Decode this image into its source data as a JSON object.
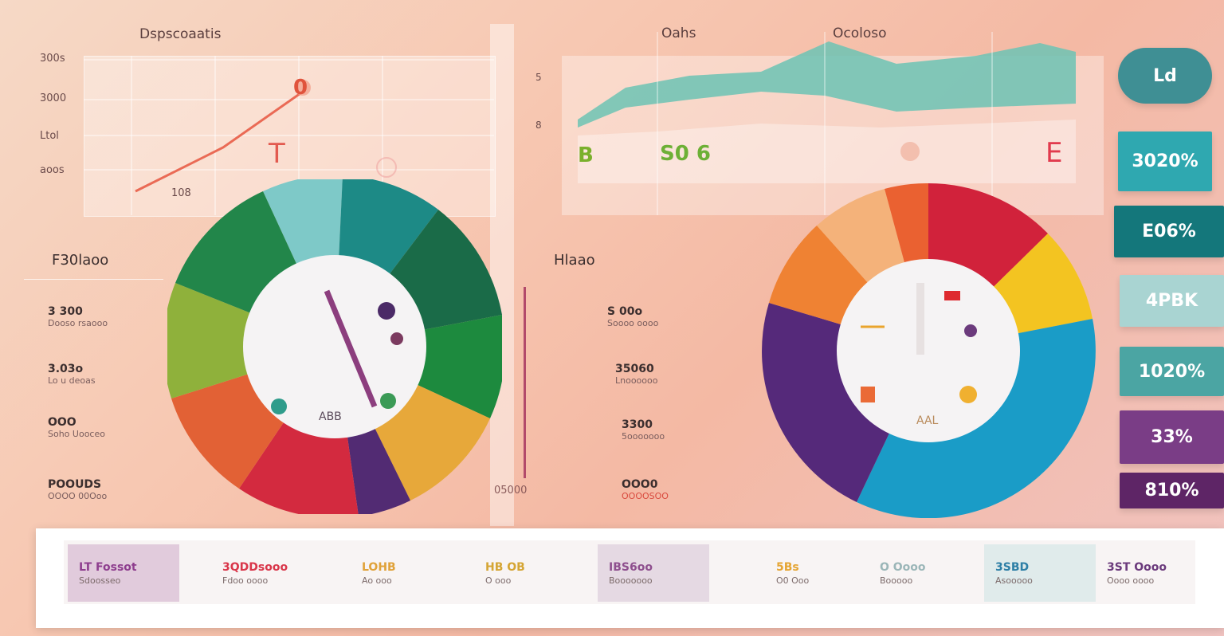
{
  "left_chart": {
    "title": "Dspscoaatis",
    "y_ticks": [
      "300s",
      "3000",
      "Ltol",
      "aoos"
    ],
    "marker": "0",
    "glyph": "T",
    "bottom_label": "108"
  },
  "right_chart": {
    "title": "Oahs",
    "title2": "Ocoloso",
    "left_labels": [
      "B",
      "8",
      "5"
    ],
    "value_label": "S0 6",
    "glyph": "E"
  },
  "left_legend": {
    "header": "F30laoo",
    "rows": [
      {
        "num": "3 300",
        "sub": "Dooso rsaooo"
      },
      {
        "num": "3.03o",
        "sub": "Lo u deoas"
      },
      {
        "num": "OOO",
        "sub": "Soho Uooceo"
      },
      {
        "num": "POOUDS",
        "sub": "OOOO 00Ooo"
      }
    ]
  },
  "mid_legend": {
    "header": "Hlaao",
    "rows": [
      {
        "num": "S 00o",
        "sub": "Soooo oooo"
      },
      {
        "num": "35060",
        "sub": "Lnoooooo"
      },
      {
        "num": "3300",
        "sub": "5ooooooo"
      },
      {
        "num": "OOO0",
        "sub": "OOOOSOO"
      }
    ],
    "bottom": "05000"
  },
  "left_pie_center": "ABB",
  "right_pie_center": "AAL",
  "right_tiles": [
    {
      "label": "Ld",
      "color": "#4e9e9e"
    },
    {
      "label": "3020%",
      "color": "#3ea9ad"
    },
    {
      "label": "E06%",
      "color": "#188a8a"
    },
    {
      "label": "4PBK",
      "color": "#9bc7c6"
    },
    {
      "label": "1020%",
      "color": "#58a6a4"
    },
    {
      "label": "33%",
      "color": "#7c3f86"
    },
    {
      "label": "810%",
      "color": "#6a2d77"
    }
  ],
  "footer": [
    {
      "title": "LT Fossot",
      "sub": "Sdoosseo",
      "color": "#8e3e8e"
    },
    {
      "title": "3QDDsooo",
      "sub": "Fdoo oooo",
      "color": "#d9364a"
    },
    {
      "title": "LOHB",
      "sub": "Ao ooo",
      "color": "#e0a23a"
    },
    {
      "title": "HB OB",
      "sub": "O ooo",
      "color": "#d5a534"
    },
    {
      "title": "IBS6oo",
      "sub": "Booooooo",
      "color": "#8e4f8e"
    },
    {
      "title": "5Bs",
      "sub": "O0 Ooo",
      "color": "#e5a534"
    },
    {
      "title": "O Oooo",
      "sub": "Booooo",
      "color": "#9bb6b8"
    },
    {
      "title": "3SBD",
      "sub": "Asooooo",
      "color": "#2e7fa6"
    },
    {
      "title": "3ST Oooo",
      "sub": "Oooo oooo",
      "color": "#6b3a7c"
    }
  ]
}
